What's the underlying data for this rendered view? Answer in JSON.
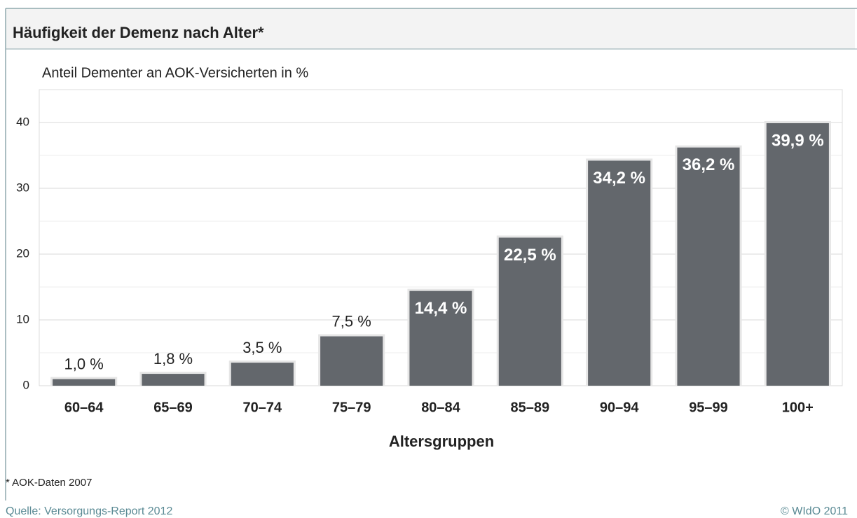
{
  "chart_data": {
    "type": "bar",
    "title": "Häufigkeit der Demenz nach Alter*",
    "subtitle": "Anteil Dementer an AOK-Versicherten in %",
    "x_label": "Altersgruppen",
    "categories": [
      "60–64",
      "65–69",
      "70–74",
      "75–79",
      "80–84",
      "85–89",
      "90–94",
      "95–99",
      "100+"
    ],
    "values": [
      1.0,
      1.8,
      3.5,
      7.5,
      14.4,
      22.5,
      34.2,
      36.2,
      39.9
    ],
    "value_labels": [
      "1,0 %",
      "1,8 %",
      "3,5 %",
      "7,5 %",
      "14,4 %",
      "22,5 %",
      "34,2 %",
      "36,2 %",
      "39,9 %"
    ],
    "color": "#63676c",
    "ylim": [
      0,
      45
    ],
    "yticks": [
      0,
      10,
      20,
      30,
      40
    ],
    "grid": true,
    "footnote": "* AOK-Daten 2007",
    "source": "Quelle: Versorgungs-Report 2012",
    "copyright": "© WIdO 2011"
  }
}
